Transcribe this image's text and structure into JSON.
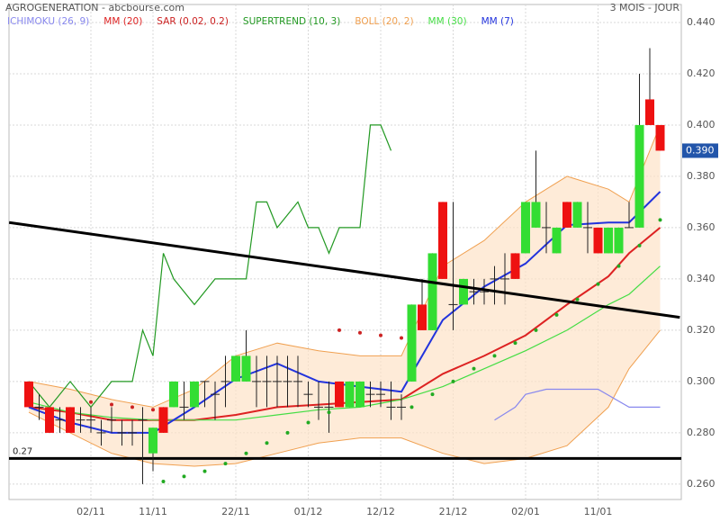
{
  "chart_data": {
    "type": "candlestick",
    "title": "AGROGENERATION - abcbourse.com",
    "subtitle": "3 MOIS - JOUR",
    "categories": [
      null,
      null,
      null,
      null,
      null,
      null,
      "02/11",
      null,
      null,
      null,
      null,
      null,
      "11/11",
      null,
      null,
      null,
      null,
      null,
      null,
      null,
      "22/11",
      null,
      null,
      null,
      null,
      null,
      null,
      "01/12",
      null,
      null,
      null,
      null,
      null,
      null,
      "12/12",
      null,
      null,
      null,
      null,
      null,
      null,
      "21/12",
      null,
      null,
      null,
      null,
      null,
      null,
      "02/01",
      null,
      null,
      null,
      null,
      null,
      null,
      "11/01",
      null,
      null,
      null,
      null,
      null,
      null
    ],
    "open": [
      0.3,
      0.29,
      0.29,
      0.285,
      0.29,
      0.285,
      0.285,
      0.28,
      0.285,
      0.28,
      0.28,
      0.285,
      0.272,
      0.29,
      0.29,
      0.29,
      0.29,
      0.3,
      0.295,
      0.3,
      0.3,
      0.3,
      0.3,
      0.3,
      0.3,
      0.3,
      0.3,
      0.295,
      0.29,
      0.29,
      0.3,
      0.29,
      0.29,
      0.295,
      0.295,
      0.29,
      0.29,
      0.3,
      0.33,
      0.32,
      0.37,
      0.33,
      0.33,
      0.335,
      0.335,
      0.34,
      0.34,
      0.35,
      0.35,
      0.36,
      0.36,
      0.35,
      0.37,
      0.36,
      0.36,
      0.36,
      0.35,
      0.35,
      0.36,
      0.36,
      0.41,
      0.4
    ],
    "high": [
      0.3,
      0.295,
      0.29,
      0.29,
      0.29,
      0.29,
      0.29,
      0.285,
      0.29,
      0.285,
      0.285,
      0.29,
      0.282,
      0.29,
      0.3,
      0.3,
      0.3,
      0.3,
      0.3,
      0.31,
      0.31,
      0.32,
      0.31,
      0.31,
      0.31,
      0.31,
      0.31,
      0.3,
      0.3,
      0.3,
      0.3,
      0.3,
      0.3,
      0.3,
      0.3,
      0.3,
      0.295,
      0.33,
      0.34,
      0.35,
      0.37,
      0.37,
      0.34,
      0.34,
      0.34,
      0.345,
      0.35,
      0.35,
      0.37,
      0.39,
      0.37,
      0.36,
      0.37,
      0.37,
      0.37,
      0.36,
      0.36,
      0.36,
      0.37,
      0.42,
      0.43,
      0.4
    ],
    "low": [
      0.29,
      0.285,
      0.28,
      0.28,
      0.28,
      0.28,
      0.28,
      0.275,
      0.28,
      0.275,
      0.275,
      0.26,
      0.265,
      0.28,
      0.29,
      0.285,
      0.29,
      0.29,
      0.285,
      0.29,
      0.3,
      0.3,
      0.29,
      0.29,
      0.29,
      0.29,
      0.29,
      0.29,
      0.285,
      0.28,
      0.29,
      0.29,
      0.29,
      0.29,
      0.29,
      0.285,
      0.285,
      0.3,
      0.32,
      0.32,
      0.34,
      0.32,
      0.33,
      0.33,
      0.33,
      0.33,
      0.33,
      0.34,
      0.35,
      0.36,
      0.35,
      0.35,
      0.36,
      0.36,
      0.35,
      0.35,
      0.35,
      0.35,
      0.36,
      0.36,
      0.4,
      0.39
    ],
    "close": [
      0.29,
      0.29,
      0.28,
      0.285,
      0.28,
      0.285,
      0.285,
      0.28,
      0.285,
      0.28,
      0.28,
      0.285,
      0.282,
      0.28,
      0.3,
      0.29,
      0.3,
      0.3,
      0.295,
      0.3,
      0.31,
      0.31,
      0.3,
      0.3,
      0.3,
      0.3,
      0.3,
      0.295,
      0.29,
      0.29,
      0.29,
      0.3,
      0.3,
      0.295,
      0.295,
      0.29,
      0.29,
      0.33,
      0.32,
      0.35,
      0.34,
      0.33,
      0.34,
      0.335,
      0.335,
      0.34,
      0.34,
      0.34,
      0.37,
      0.37,
      0.36,
      0.36,
      0.36,
      0.37,
      0.36,
      0.35,
      0.36,
      0.36,
      0.36,
      0.4,
      0.4,
      0.39
    ],
    "up_color": "#33dd33",
    "down_color": "#ee1111",
    "series": [
      {
        "name": "ICHIMOKU (26, 9)",
        "type": "line",
        "color": "#8888ee",
        "x": [
          45,
          47,
          48,
          50,
          52,
          55,
          58,
          61
        ],
        "values": [
          0.285,
          0.29,
          0.295,
          0.297,
          0.297,
          0.297,
          0.29,
          0.29
        ]
      },
      {
        "name": "MM (20)",
        "type": "line",
        "color": "#dd2222",
        "x": [
          0,
          4,
          8,
          12,
          16,
          20,
          24,
          28,
          32,
          36,
          40,
          44,
          48,
          52,
          56,
          58,
          61
        ],
        "values": [
          0.29,
          0.288,
          0.285,
          0.285,
          0.285,
          0.287,
          0.29,
          0.291,
          0.292,
          0.293,
          0.303,
          0.31,
          0.318,
          0.33,
          0.341,
          0.35,
          0.36
        ]
      },
      {
        "name": "SAR (0.02, 0.2)",
        "type": "dots",
        "color": "#cc2222",
        "color_below": "#22aa22",
        "x": [
          6,
          8,
          10,
          12,
          13,
          15,
          17,
          19,
          21,
          23,
          25,
          27,
          29,
          30,
          32,
          34,
          36,
          37,
          39,
          41,
          43,
          45,
          47,
          49,
          51,
          53,
          55,
          57,
          59,
          61
        ],
        "values": [
          0.292,
          0.291,
          0.29,
          0.289,
          0.261,
          0.263,
          0.265,
          0.268,
          0.272,
          0.276,
          0.28,
          0.284,
          0.288,
          0.32,
          0.319,
          0.318,
          0.317,
          0.29,
          0.295,
          0.3,
          0.305,
          0.31,
          0.315,
          0.32,
          0.326,
          0.332,
          0.338,
          0.345,
          0.353,
          0.363
        ]
      },
      {
        "name": "SUPERTREND (10, 3)",
        "type": "line",
        "color": "#229922",
        "x": [
          0,
          2,
          4,
          6,
          8,
          10,
          11,
          12,
          13,
          14,
          16,
          18,
          20,
          21,
          22,
          23,
          24,
          26,
          27,
          28,
          29,
          30,
          32,
          33,
          34,
          35
        ],
        "values": [
          0.3,
          0.29,
          0.3,
          0.29,
          0.3,
          0.3,
          0.32,
          0.31,
          0.35,
          0.34,
          0.33,
          0.34,
          0.34,
          0.34,
          0.37,
          0.37,
          0.36,
          0.37,
          0.36,
          0.36,
          0.35,
          0.36,
          0.36,
          0.4,
          0.4,
          0.39
        ]
      },
      {
        "name": "BOLL (20, 2)",
        "type": "band",
        "color": "#f0a050",
        "fill": "#fde3c8",
        "x": [
          0,
          4,
          8,
          12,
          16,
          20,
          24,
          28,
          32,
          36,
          40,
          44,
          48,
          52,
          56,
          58,
          61
        ],
        "values": [
          0.3,
          0.297,
          0.293,
          0.29,
          0.297,
          0.31,
          0.315,
          0.312,
          0.31,
          0.31,
          0.345,
          0.355,
          0.37,
          0.38,
          0.375,
          0.37,
          0.4
        ],
        "lower": [
          0.288,
          0.28,
          0.272,
          0.268,
          0.267,
          0.268,
          0.272,
          0.276,
          0.278,
          0.278,
          0.272,
          0.268,
          0.27,
          0.275,
          0.29,
          0.305,
          0.32
        ]
      },
      {
        "name": "MM (30)",
        "type": "line",
        "color": "#44dd44",
        "x": [
          0,
          4,
          8,
          12,
          16,
          20,
          24,
          28,
          32,
          36,
          40,
          44,
          48,
          52,
          56,
          58,
          61
        ],
        "values": [
          0.292,
          0.288,
          0.286,
          0.285,
          0.285,
          0.285,
          0.287,
          0.289,
          0.29,
          0.293,
          0.298,
          0.305,
          0.312,
          0.32,
          0.33,
          0.334,
          0.345
        ]
      },
      {
        "name": "MM (7)",
        "type": "line",
        "color": "#2233dd",
        "x": [
          0,
          4,
          8,
          12,
          16,
          20,
          24,
          28,
          32,
          36,
          40,
          44,
          48,
          52,
          56,
          58,
          61
        ],
        "values": [
          0.29,
          0.284,
          0.28,
          0.28,
          0.29,
          0.301,
          0.307,
          0.3,
          0.298,
          0.296,
          0.324,
          0.337,
          0.346,
          0.361,
          0.362,
          0.362,
          0.374
        ]
      }
    ],
    "trend_line": {
      "x": [
        -1.9,
        62.9
      ],
      "values": [
        0.362,
        0.325
      ]
    },
    "support": {
      "value": 0.27,
      "label": "0.27"
    },
    "last_price": {
      "value": 0.39,
      "label": "0.390"
    },
    "ylim": [
      0.254,
      0.447
    ],
    "yticks": [
      {
        "value": 0.26,
        "label": "0.260"
      },
      {
        "value": 0.28,
        "label": "0.280"
      },
      {
        "value": 0.3,
        "label": "0.300"
      },
      {
        "value": 0.32,
        "label": "0.320"
      },
      {
        "value": 0.34,
        "label": "0.340"
      },
      {
        "value": 0.36,
        "label": "0.360"
      },
      {
        "value": 0.38,
        "label": "0.380"
      },
      {
        "value": 0.4,
        "label": "0.400"
      },
      {
        "value": 0.42,
        "label": "0.420"
      },
      {
        "value": 0.44,
        "label": "0.440"
      }
    ],
    "grid": true
  }
}
